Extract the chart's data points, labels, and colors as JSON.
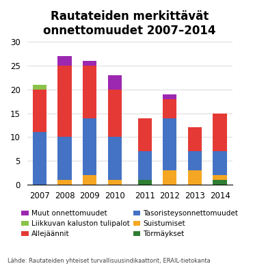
{
  "years": [
    "2007",
    "2008",
    "2009",
    "2010",
    "2011",
    "2012",
    "2013",
    "2014"
  ],
  "category_order": [
    "Törmäykset",
    "Suistumiset",
    "Tasoristeysonnettomuudet",
    "Allejäännit",
    "Liikkuvan kaluston tulipalot",
    "Muut onnettomuudet"
  ],
  "colors": {
    "Törmäykset": "#2e7d32",
    "Suistumiset": "#f5a623",
    "Tasoristeysonnettomuudet": "#4472c4",
    "Allejäännit": "#e53935",
    "Liikkuvan kaluston tulipalot": "#8bc34a",
    "Muut onnettomuudet": "#9c27b0"
  },
  "data": {
    "Törmäykset": [
      0,
      0,
      0,
      0,
      1,
      0,
      0,
      1
    ],
    "Suistumiset": [
      0,
      1,
      2,
      1,
      0,
      3,
      3,
      1
    ],
    "Tasoristeysonnettomuudet": [
      11,
      9,
      12,
      9,
      6,
      11,
      4,
      5
    ],
    "Allejäännit": [
      9,
      15,
      11,
      10,
      7,
      4,
      5,
      8
    ],
    "Liikkuvan kaluston tulipalot": [
      1,
      0,
      0,
      0,
      0,
      0,
      0,
      0
    ],
    "Muut onnettomuudet": [
      0,
      2,
      1,
      3,
      0,
      1,
      0,
      0
    ]
  },
  "title": "Rautateiden merkittävät\nonnettomuudet 2007–2014",
  "ylim": [
    0,
    30
  ],
  "yticks": [
    0,
    5,
    10,
    15,
    20,
    25,
    30
  ],
  "source": "Lähde: Rautateiden yhteiset turvallisuusindikaattorit, ERAIL-tietokanta",
  "legend_order_left": [
    "Muut onnettomuudet",
    "Allejäännit",
    "Suistumiset"
  ],
  "legend_order_right": [
    "Liikkuvan kaluston tulipalot",
    "Tasoristeysonnettomuudet",
    "Törmäykset"
  ],
  "title_fontsize": 12,
  "tick_fontsize": 8.5,
  "legend_fontsize": 7.5,
  "source_fontsize": 6,
  "bar_width": 0.55,
  "x_positions": [
    0,
    1,
    2,
    3,
    4.2,
    5.2,
    6.2,
    7.2
  ]
}
